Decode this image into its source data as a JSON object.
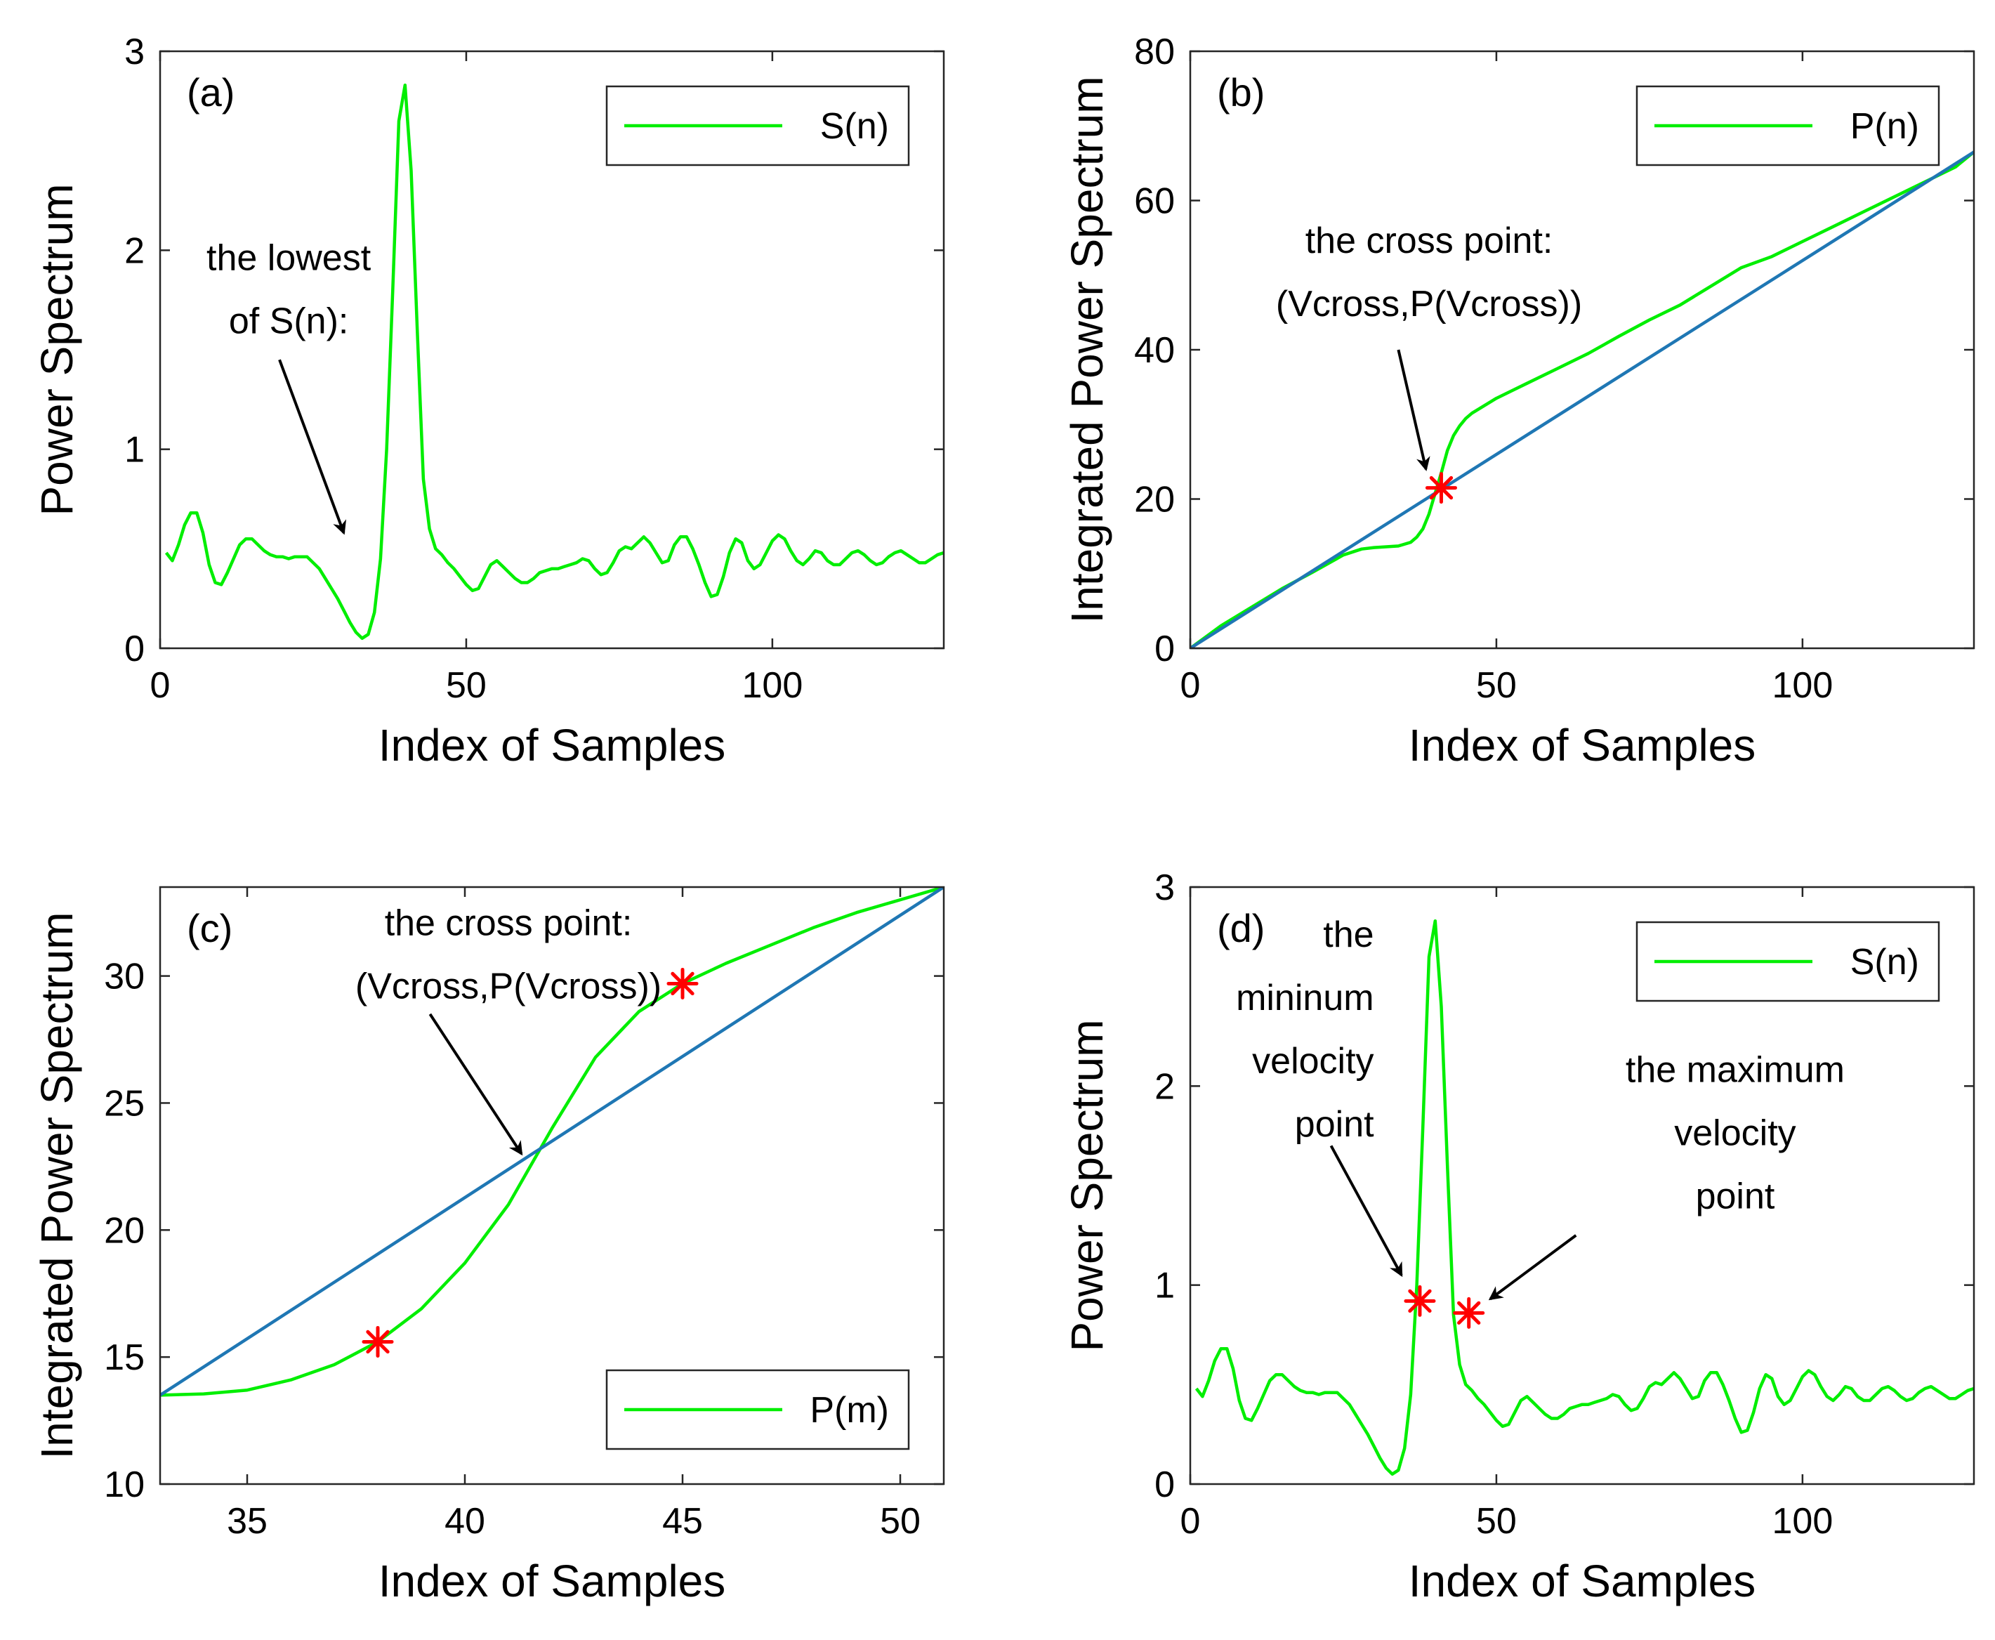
{
  "chart_data": [
    {
      "id": "a",
      "type": "line",
      "panel_label": "(a)",
      "xlabel": "Index of Samples",
      "ylabel": "Power Spectrum",
      "xlim": [
        0,
        128
      ],
      "ylim": [
        0,
        3
      ],
      "xticks": [
        0,
        50,
        100
      ],
      "yticks": [
        0,
        1,
        2,
        3
      ],
      "legend": {
        "position": "top-right",
        "entries": [
          {
            "label": "S(n)",
            "color": "#00ee00"
          }
        ]
      },
      "series": [
        {
          "name": "S(n)",
          "color": "#00ee00",
          "x": [
            1,
            2,
            3,
            4,
            5,
            6,
            7,
            8,
            9,
            10,
            11,
            12,
            13,
            14,
            15,
            16,
            17,
            18,
            19,
            20,
            21,
            22,
            23,
            24,
            25,
            26,
            27,
            28,
            29,
            30,
            31,
            32,
            33,
            34,
            35,
            36,
            37,
            38,
            39,
            40,
            41,
            42,
            43,
            44,
            45,
            46,
            47,
            48,
            49,
            50,
            51,
            52,
            53,
            54,
            55,
            56,
            57,
            58,
            59,
            60,
            61,
            62,
            63,
            64,
            65,
            66,
            67,
            68,
            69,
            70,
            71,
            72,
            73,
            74,
            75,
            76,
            77,
            78,
            79,
            80,
            81,
            82,
            83,
            84,
            85,
            86,
            87,
            88,
            89,
            90,
            91,
            92,
            93,
            94,
            95,
            96,
            97,
            98,
            99,
            100,
            101,
            102,
            103,
            104,
            105,
            106,
            107,
            108,
            109,
            110,
            111,
            112,
            113,
            114,
            115,
            116,
            117,
            118,
            119,
            120,
            121,
            122,
            123,
            124,
            125,
            126,
            127,
            128
          ],
          "y": [
            0.48,
            0.44,
            0.52,
            0.62,
            0.68,
            0.68,
            0.58,
            0.42,
            0.33,
            0.32,
            0.38,
            0.45,
            0.52,
            0.55,
            0.55,
            0.52,
            0.49,
            0.47,
            0.46,
            0.46,
            0.45,
            0.46,
            0.46,
            0.46,
            0.43,
            0.4,
            0.35,
            0.3,
            0.25,
            0.19,
            0.13,
            0.08,
            0.05,
            0.07,
            0.18,
            0.45,
            1.0,
            1.8,
            2.65,
            2.83,
            2.4,
            1.6,
            0.85,
            0.6,
            0.5,
            0.47,
            0.43,
            0.4,
            0.36,
            0.32,
            0.29,
            0.3,
            0.36,
            0.42,
            0.44,
            0.41,
            0.38,
            0.35,
            0.33,
            0.33,
            0.35,
            0.38,
            0.39,
            0.4,
            0.4,
            0.41,
            0.42,
            0.43,
            0.45,
            0.44,
            0.4,
            0.37,
            0.38,
            0.43,
            0.49,
            0.51,
            0.5,
            0.53,
            0.56,
            0.53,
            0.48,
            0.43,
            0.44,
            0.52,
            0.56,
            0.56,
            0.5,
            0.42,
            0.33,
            0.26,
            0.27,
            0.36,
            0.48,
            0.55,
            0.53,
            0.44,
            0.4,
            0.42,
            0.48,
            0.54,
            0.57,
            0.55,
            0.49,
            0.44,
            0.42,
            0.45,
            0.49,
            0.48,
            0.44,
            0.42,
            0.42,
            0.45,
            0.48,
            0.49,
            0.47,
            0.44,
            0.42,
            0.43,
            0.46,
            0.48,
            0.49,
            0.47,
            0.45,
            0.43,
            0.43,
            0.45,
            0.47,
            0.48
          ]
        }
      ],
      "annotations": [
        {
          "lines": [
            "the lowest",
            "of S(n):"
          ],
          "x": 21,
          "y": 1.9,
          "anchor": "middle",
          "arrow_from": [
            19.5,
            1.45
          ],
          "arrow_to": [
            30,
            0.58
          ]
        }
      ],
      "markers": []
    },
    {
      "id": "b",
      "type": "line",
      "panel_label": "(b)",
      "xlabel": "Index of Samples",
      "ylabel": "Integrated Power Spectrum",
      "xlim": [
        0,
        128
      ],
      "ylim": [
        0,
        80
      ],
      "xticks": [
        0,
        50,
        100
      ],
      "yticks": [
        0,
        20,
        40,
        60,
        80
      ],
      "legend": {
        "position": "top-right",
        "entries": [
          {
            "label": "P(n)",
            "color": "#00ee00"
          }
        ]
      },
      "series": [
        {
          "name": "P(n)",
          "color": "#00ee00",
          "x": [
            0,
            5,
            10,
            15,
            20,
            25,
            28,
            30,
            32,
            34,
            36,
            37,
            38,
            39,
            40,
            41,
            42,
            43,
            44,
            45,
            46,
            48,
            50,
            55,
            60,
            65,
            70,
            75,
            80,
            85,
            90,
            95,
            100,
            105,
            110,
            115,
            120,
            125,
            128
          ],
          "y": [
            0,
            3.0,
            5.5,
            8.0,
            10.2,
            12.5,
            13.3,
            13.5,
            13.6,
            13.7,
            14.2,
            14.9,
            16.0,
            18.0,
            20.8,
            23.5,
            26.5,
            28.5,
            29.8,
            30.8,
            31.5,
            32.5,
            33.5,
            35.5,
            37.5,
            39.5,
            41.8,
            44.0,
            46.0,
            48.5,
            51.0,
            52.5,
            54.5,
            56.5,
            58.5,
            60.5,
            62.5,
            64.5,
            66.5
          ]
        },
        {
          "name": "",
          "color": "#1f77b4",
          "x": [
            0,
            128
          ],
          "y": [
            0,
            66.5
          ]
        }
      ],
      "annotations": [
        {
          "lines": [
            "the cross point:",
            "(Vcross,P(Vcross))"
          ],
          "x": 39,
          "y": 53,
          "anchor": "middle",
          "arrow_from": [
            34,
            40
          ],
          "arrow_to": [
            38.5,
            24
          ]
        }
      ],
      "markers": [
        {
          "x": 41,
          "y": 21.5,
          "color": "#ff0000"
        }
      ]
    },
    {
      "id": "c",
      "type": "line",
      "panel_label": "(c)",
      "xlabel": "Index of Samples",
      "ylabel": "Integrated Power Spectrum",
      "xlim": [
        33,
        51
      ],
      "ylim": [
        10,
        33.5
      ],
      "xticks": [
        35,
        40,
        45,
        50
      ],
      "yticks": [
        10,
        15,
        20,
        25,
        30
      ],
      "legend": {
        "position": "bottom-right",
        "entries": [
          {
            "label": "P(m)",
            "color": "#00ee00"
          }
        ]
      },
      "series": [
        {
          "name": "P(m)",
          "color": "#00ee00",
          "x": [
            33,
            34,
            35,
            36,
            37,
            38,
            39,
            40,
            41,
            42,
            43,
            44,
            45,
            46,
            47,
            48,
            49,
            50,
            51
          ],
          "y": [
            13.5,
            13.55,
            13.7,
            14.1,
            14.7,
            15.6,
            16.9,
            18.7,
            21.0,
            24.0,
            26.8,
            28.6,
            29.7,
            30.5,
            31.2,
            31.9,
            32.5,
            33.0,
            33.5
          ]
        },
        {
          "name": "",
          "color": "#1f77b4",
          "x": [
            33,
            51
          ],
          "y": [
            13.5,
            33.5
          ]
        }
      ],
      "annotations": [
        {
          "lines": [
            "the cross point:",
            "(Vcross,P(Vcross))"
          ],
          "x": 41,
          "y": 31.6,
          "anchor": "middle",
          "arrow_from": [
            39.2,
            28.5
          ],
          "arrow_to": [
            41.3,
            23.0
          ]
        }
      ],
      "markers": [
        {
          "x": 38,
          "y": 15.6,
          "color": "#ff0000"
        },
        {
          "x": 45,
          "y": 29.7,
          "color": "#ff0000"
        }
      ]
    },
    {
      "id": "d",
      "type": "line",
      "panel_label": "(d)",
      "xlabel": "Index of Samples",
      "ylabel": "Power Spectrum",
      "xlim": [
        0,
        128
      ],
      "ylim": [
        0,
        3
      ],
      "xticks": [
        0,
        50,
        100
      ],
      "yticks": [
        0,
        1,
        2,
        3
      ],
      "legend": {
        "position": "top-right",
        "entries": [
          {
            "label": "S(n)",
            "color": "#00ee00"
          }
        ]
      },
      "series": [
        {
          "name": "S(n)",
          "color": "#00ee00",
          "x": [
            1,
            2,
            3,
            4,
            5,
            6,
            7,
            8,
            9,
            10,
            11,
            12,
            13,
            14,
            15,
            16,
            17,
            18,
            19,
            20,
            21,
            22,
            23,
            24,
            25,
            26,
            27,
            28,
            29,
            30,
            31,
            32,
            33,
            34,
            35,
            36,
            37,
            38,
            39,
            40,
            41,
            42,
            43,
            44,
            45,
            46,
            47,
            48,
            49,
            50,
            51,
            52,
            53,
            54,
            55,
            56,
            57,
            58,
            59,
            60,
            61,
            62,
            63,
            64,
            65,
            66,
            67,
            68,
            69,
            70,
            71,
            72,
            73,
            74,
            75,
            76,
            77,
            78,
            79,
            80,
            81,
            82,
            83,
            84,
            85,
            86,
            87,
            88,
            89,
            90,
            91,
            92,
            93,
            94,
            95,
            96,
            97,
            98,
            99,
            100,
            101,
            102,
            103,
            104,
            105,
            106,
            107,
            108,
            109,
            110,
            111,
            112,
            113,
            114,
            115,
            116,
            117,
            118,
            119,
            120,
            121,
            122,
            123,
            124,
            125,
            126,
            127,
            128
          ],
          "y": [
            0.48,
            0.44,
            0.52,
            0.62,
            0.68,
            0.68,
            0.58,
            0.42,
            0.33,
            0.32,
            0.38,
            0.45,
            0.52,
            0.55,
            0.55,
            0.52,
            0.49,
            0.47,
            0.46,
            0.46,
            0.45,
            0.46,
            0.46,
            0.46,
            0.43,
            0.4,
            0.35,
            0.3,
            0.25,
            0.19,
            0.13,
            0.08,
            0.05,
            0.07,
            0.18,
            0.45,
            1.0,
            1.8,
            2.65,
            2.83,
            2.4,
            1.6,
            0.85,
            0.6,
            0.5,
            0.47,
            0.43,
            0.4,
            0.36,
            0.32,
            0.29,
            0.3,
            0.36,
            0.42,
            0.44,
            0.41,
            0.38,
            0.35,
            0.33,
            0.33,
            0.35,
            0.38,
            0.39,
            0.4,
            0.4,
            0.41,
            0.42,
            0.43,
            0.45,
            0.44,
            0.4,
            0.37,
            0.38,
            0.43,
            0.49,
            0.51,
            0.5,
            0.53,
            0.56,
            0.53,
            0.48,
            0.43,
            0.44,
            0.52,
            0.56,
            0.56,
            0.5,
            0.42,
            0.33,
            0.26,
            0.27,
            0.36,
            0.48,
            0.55,
            0.53,
            0.44,
            0.4,
            0.42,
            0.48,
            0.54,
            0.57,
            0.55,
            0.49,
            0.44,
            0.42,
            0.45,
            0.49,
            0.48,
            0.44,
            0.42,
            0.42,
            0.45,
            0.48,
            0.49,
            0.47,
            0.44,
            0.42,
            0.43,
            0.46,
            0.48,
            0.49,
            0.47,
            0.45,
            0.43,
            0.43,
            0.45,
            0.47,
            0.48
          ]
        }
      ],
      "annotations": [
        {
          "lines": [
            "the",
            "mininum",
            "velocity",
            "point"
          ],
          "x": 30,
          "y": 2.7,
          "anchor": "end",
          "arrow_from": [
            23,
            1.7
          ],
          "arrow_to": [
            34.5,
            1.05
          ]
        },
        {
          "lines": [
            "the maximum",
            "velocity",
            "point"
          ],
          "x": 89,
          "y": 2.02,
          "anchor": "middle",
          "arrow_from": [
            63,
            1.25
          ],
          "arrow_to": [
            49,
            0.93
          ]
        }
      ],
      "markers": [
        {
          "x": 37.5,
          "y": 0.92,
          "color": "#ff0000"
        },
        {
          "x": 45.5,
          "y": 0.86,
          "color": "#ff0000"
        }
      ]
    }
  ]
}
